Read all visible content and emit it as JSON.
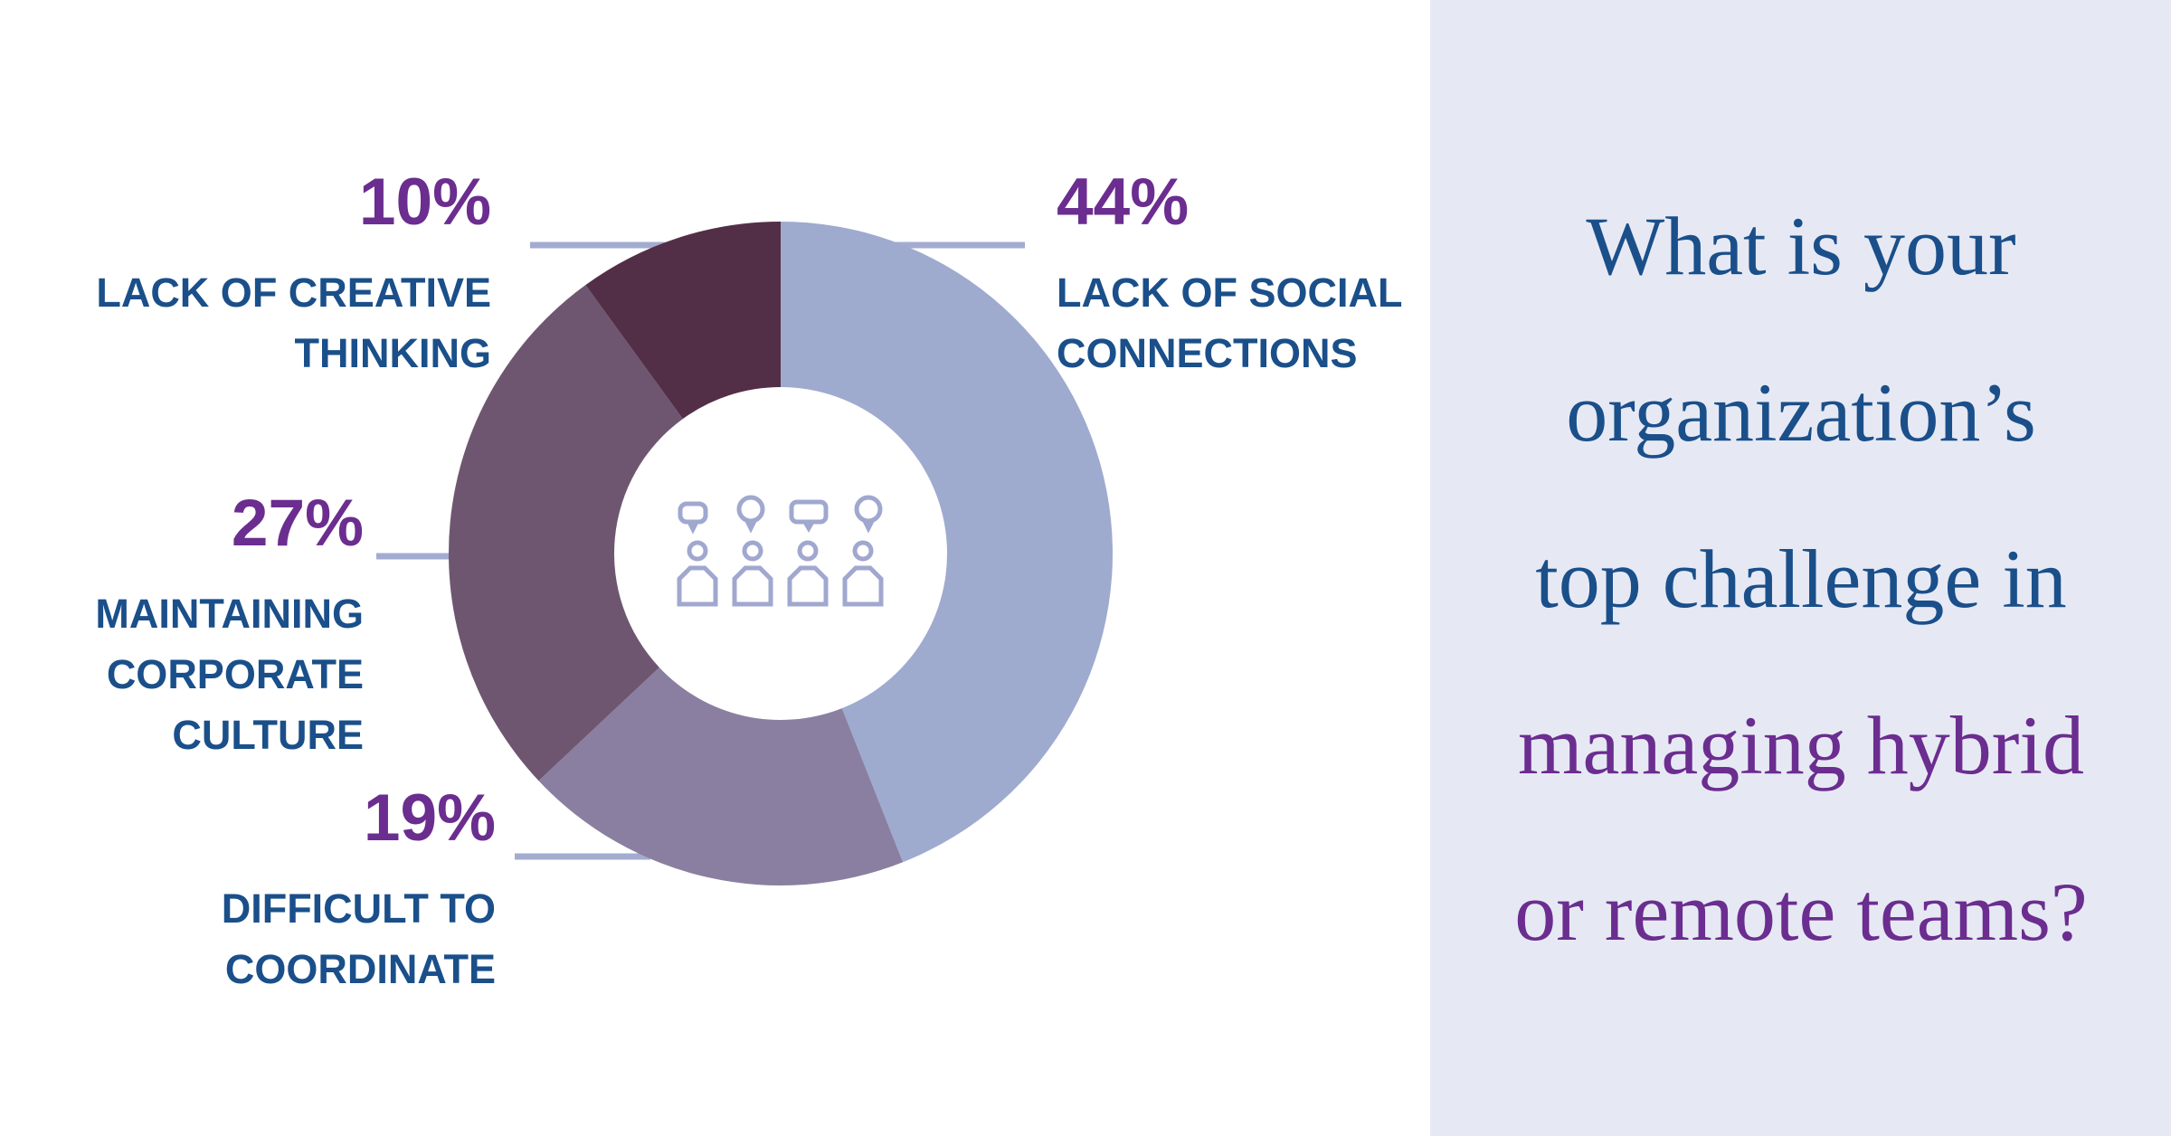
{
  "chart_data": {
    "type": "donut",
    "title": "What is your organization’s top challenge in",
    "title_highlight": "managing hybrid or remote teams?",
    "categories": [
      "LACK OF SOCIAL CONNECTIONS",
      "DIFFICULT TO COORDINATE",
      "MAINTAINING CORPORATE CULTURE",
      "LACK OF CREATIVE THINKING"
    ],
    "values": [
      44,
      19,
      27,
      10
    ],
    "value_labels": [
      "44%",
      "19%",
      "27%",
      "10%"
    ],
    "colors": [
      "#9faacf",
      "#8a7fa0",
      "#6e5670",
      "#532f47"
    ]
  }
}
